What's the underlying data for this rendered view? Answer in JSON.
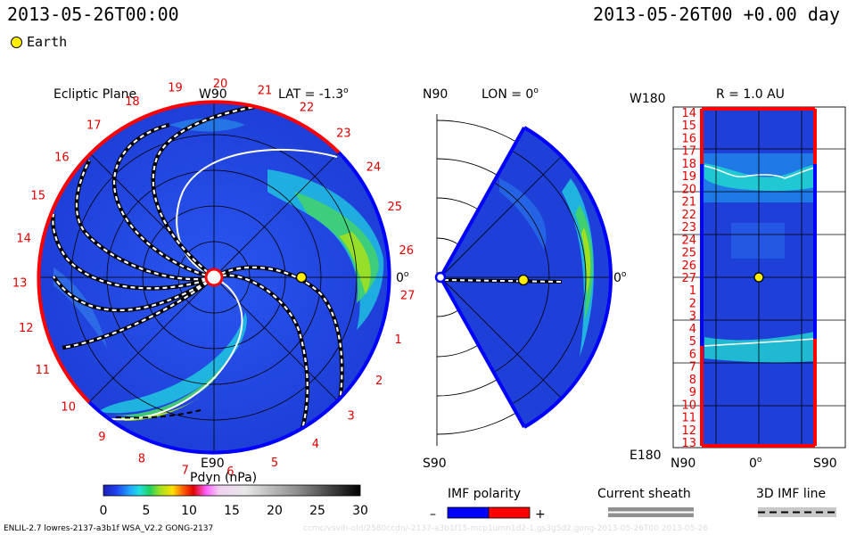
{
  "header": {
    "date_left": "2013-05-26T00:00",
    "date_right": "2013-05-26T00 +0.00 day",
    "legend_earth": "Earth"
  },
  "ecliptic": {
    "title": "Ecliptic Plane",
    "top_label": "W90",
    "bottom_label": "E90",
    "lat": "LAT = -1.3",
    "zero": "0",
    "numbers": [
      "19",
      "20",
      "21",
      "22",
      "23",
      "24",
      "25",
      "26",
      "27",
      "1",
      "2",
      "3",
      "4",
      "5",
      "6",
      "7",
      "8",
      "9",
      "10",
      "11",
      "12",
      "13",
      "14",
      "15",
      "16",
      "17",
      "18"
    ]
  },
  "meridional": {
    "top_label": "N90",
    "bottom_label": "S90",
    "lon": "LON = 0",
    "zero": "0"
  },
  "radial": {
    "title": "R = 1.0 AU",
    "top_label": "W180",
    "bottom_label": "E180",
    "x_left": "N90",
    "x_mid": "0",
    "x_right": "S90",
    "rows": [
      "14",
      "15",
      "16",
      "17",
      "18",
      "19",
      "20",
      "21",
      "22",
      "23",
      "24",
      "25",
      "26",
      "27",
      "1",
      "2",
      "3",
      "4",
      "5",
      "6",
      "7",
      "8",
      "9",
      "10",
      "11",
      "12",
      "13"
    ]
  },
  "colorbar": {
    "label": "Pdyn (nPa)",
    "ticks": [
      "0",
      "5",
      "10",
      "15",
      "20",
      "25",
      "30"
    ]
  },
  "keys": {
    "imf_polarity": "IMF polarity",
    "minus": "–",
    "plus": "+",
    "current_sheath": "Current sheath",
    "imf_line": "3D IMF line"
  },
  "footer": {
    "left": "ENLIL-2.7 lowres-2137-a3b1f WSA_V2.2 GONG-2137",
    "faint": "ccmc/vsvih-old/2580ccdn/-2137-a3b1f15-mcp1umn1d2-1.gs3g5d2.gong-2013-05-26T00   2013-05-26"
  },
  "colors": {
    "background_field": "#1a3fe0",
    "positive_polarity": "#ff0000",
    "negative_polarity": "#0000ff",
    "ticklabel_red": "#e00000"
  }
}
